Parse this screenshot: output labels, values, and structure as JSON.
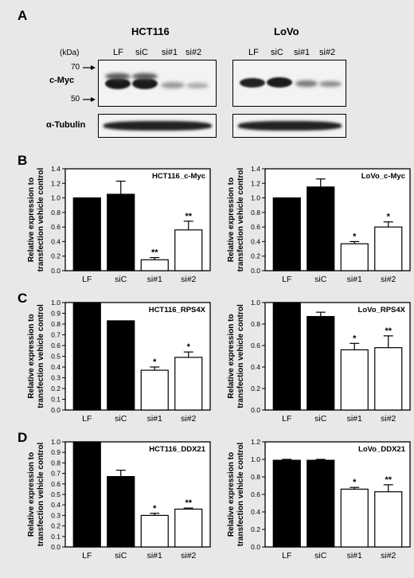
{
  "panels": {
    "a": "A",
    "b": "B",
    "c": "C",
    "d": "D"
  },
  "blot": {
    "cell_lines": [
      "HCT116",
      "LoVo"
    ],
    "lanes": [
      "LF",
      "siC",
      "si#1",
      "si#2"
    ],
    "kda_label": "(kDa)",
    "markers": [
      "70",
      "50"
    ],
    "rows": [
      "c-Myc",
      "α-Tubulin"
    ]
  },
  "y_axis_label_line1": "Relative expression to",
  "y_axis_label_line2": "transfection vehicle control",
  "chart_data": [
    {
      "type": "bar",
      "title": "HCT116_c-Myc",
      "categories": [
        "LF",
        "siC",
        "si#1",
        "si#2"
      ],
      "values": [
        1.0,
        1.05,
        0.15,
        0.56
      ],
      "errors": [
        0,
        0.18,
        0.03,
        0.12
      ],
      "significance": [
        "",
        "",
        "**",
        "**"
      ],
      "fill": [
        "#000000",
        "#000000",
        "#ffffff",
        "#ffffff"
      ],
      "ylim": [
        0,
        1.4
      ],
      "yticks": [
        "0.0",
        "0.2",
        "0.4",
        "0.6",
        "0.8",
        "1.0",
        "1.2",
        "1.4"
      ]
    },
    {
      "type": "bar",
      "title": "LoVo_c-Myc",
      "categories": [
        "LF",
        "siC",
        "si#1",
        "si#2"
      ],
      "values": [
        1.0,
        1.15,
        0.37,
        0.6
      ],
      "errors": [
        0,
        0.11,
        0.03,
        0.07
      ],
      "significance": [
        "",
        "",
        "*",
        "*"
      ],
      "fill": [
        "#000000",
        "#000000",
        "#ffffff",
        "#ffffff"
      ],
      "ylim": [
        0,
        1.4
      ],
      "yticks": [
        "0.0",
        "0.2",
        "0.4",
        "0.6",
        "0.8",
        "1.0",
        "1.2",
        "1.4"
      ]
    },
    {
      "type": "bar",
      "title": "HCT116_RPS4X",
      "categories": [
        "LF",
        "siC",
        "si#1",
        "si#2"
      ],
      "values": [
        1.0,
        0.83,
        0.37,
        0.49
      ],
      "errors": [
        0,
        0,
        0.03,
        0.05
      ],
      "significance": [
        "",
        "",
        "*",
        "*"
      ],
      "fill": [
        "#000000",
        "#000000",
        "#ffffff",
        "#ffffff"
      ],
      "ylim": [
        0,
        1.0
      ],
      "yticks": [
        "0.0",
        "0.1",
        "0.2",
        "0.3",
        "0.4",
        "0.5",
        "0.6",
        "0.7",
        "0.8",
        "0.9",
        "1.0"
      ]
    },
    {
      "type": "bar",
      "title": "LoVo_RPS4X",
      "categories": [
        "LF",
        "siC",
        "si#1",
        "si#2"
      ],
      "values": [
        1.0,
        0.87,
        0.56,
        0.58
      ],
      "errors": [
        0,
        0.04,
        0.06,
        0.11
      ],
      "significance": [
        "",
        "",
        "*",
        "**"
      ],
      "fill": [
        "#000000",
        "#000000",
        "#ffffff",
        "#ffffff"
      ],
      "ylim": [
        0,
        1.0
      ],
      "yticks": [
        "0.0",
        "0.2",
        "0.4",
        "0.6",
        "0.8",
        "1.0"
      ]
    },
    {
      "type": "bar",
      "title": "HCT116_DDX21",
      "categories": [
        "LF",
        "siC",
        "si#1",
        "si#2"
      ],
      "values": [
        1.0,
        0.67,
        0.3,
        0.36
      ],
      "errors": [
        0,
        0.06,
        0.02,
        0.01
      ],
      "significance": [
        "",
        "",
        "*",
        "**"
      ],
      "fill": [
        "#000000",
        "#000000",
        "#ffffff",
        "#ffffff"
      ],
      "ylim": [
        0,
        1.0
      ],
      "yticks": [
        "0.0",
        "0.1",
        "0.2",
        "0.3",
        "0.4",
        "0.5",
        "0.6",
        "0.7",
        "0.8",
        "0.9",
        "1.0"
      ]
    },
    {
      "type": "bar",
      "title": "LoVo_DDX21",
      "categories": [
        "LF",
        "siC",
        "si#1",
        "si#2"
      ],
      "values": [
        0.99,
        0.99,
        0.66,
        0.63
      ],
      "errors": [
        0.01,
        0.01,
        0.02,
        0.08
      ],
      "significance": [
        "",
        "",
        "*",
        "**"
      ],
      "fill": [
        "#000000",
        "#000000",
        "#ffffff",
        "#ffffff"
      ],
      "ylim": [
        0,
        1.2
      ],
      "yticks": [
        "0.0",
        "0.2",
        "0.4",
        "0.6",
        "0.8",
        "1.0",
        "1.2"
      ]
    }
  ]
}
